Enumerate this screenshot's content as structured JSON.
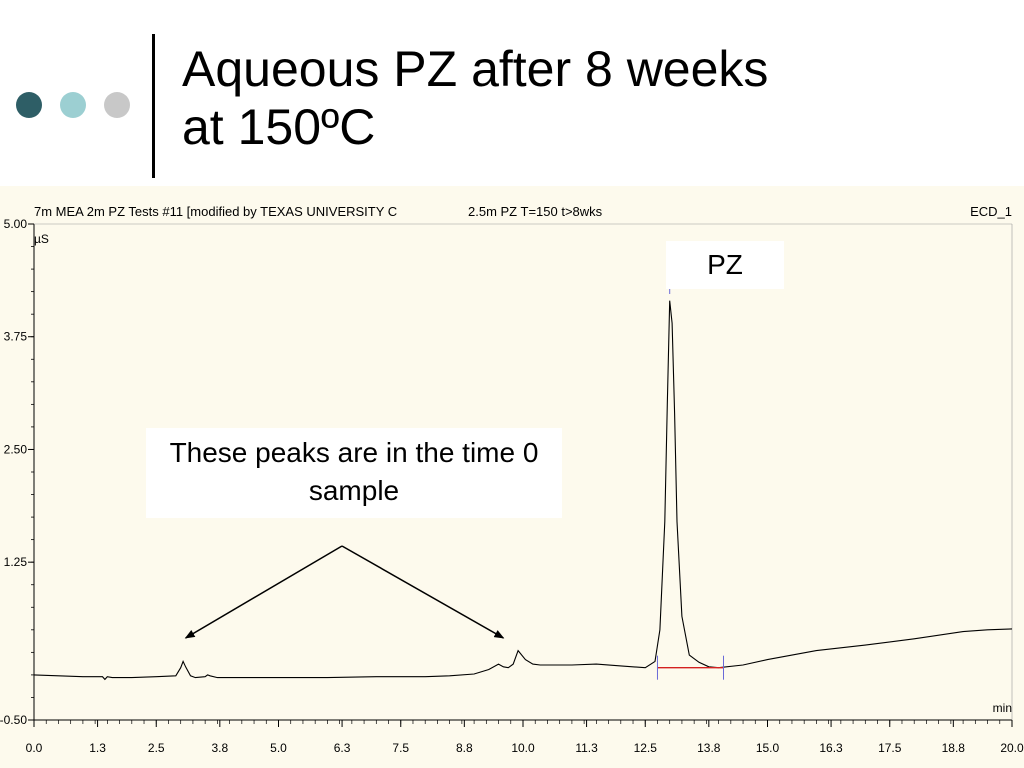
{
  "slide": {
    "title_line1": "Aqueous PZ after 8 weeks",
    "title_line2": "at 150ºC",
    "bullet_colors": [
      "#2e5e66",
      "#9ccfd2",
      "#c8c8c8"
    ]
  },
  "chart_header": {
    "left": "7m MEA 2m PZ Tests #11 [modified by  TEXAS UNIVERSITY C",
    "center": "2.5m PZ T=150 t>8wks",
    "right": "ECD_1"
  },
  "callouts": {
    "pz": "PZ",
    "note": "These peaks are in the time 0 sample"
  },
  "chart_data": {
    "type": "line",
    "xlabel": "min",
    "ylabel": "µS",
    "xlim": [
      0.0,
      20.0
    ],
    "ylim": [
      -0.5,
      5.0
    ],
    "x_ticks": [
      "0.0",
      "1.3",
      "2.5",
      "3.8",
      "5.0",
      "6.3",
      "7.5",
      "8.8",
      "10.0",
      "11.3",
      "12.5",
      "13.8",
      "15.0",
      "16.3",
      "17.5",
      "18.8",
      "20.0"
    ],
    "y_ticks": [
      "5.00",
      "3.75",
      "2.50",
      "1.25",
      "-0.50"
    ],
    "grid": false,
    "colors": {
      "trace": "#000000",
      "baseline": "#d42020",
      "marker": "#6a6ad8"
    },
    "series": [
      {
        "x": [
          0.0,
          0.5,
          1.0,
          1.4,
          1.45,
          1.5,
          1.6,
          2.0,
          2.5,
          2.9,
          3.0,
          3.05,
          3.1,
          3.2,
          3.3,
          3.5,
          3.55,
          3.6,
          3.75,
          4.0,
          5.0,
          6.0,
          7.0,
          8.0,
          8.5,
          9.0,
          9.3,
          9.5,
          9.6,
          9.7,
          9.8,
          9.9,
          10.05,
          10.2,
          10.35,
          10.5,
          11.0,
          11.5,
          12.0,
          12.5,
          12.7,
          12.8,
          12.9,
          12.95,
          13.0,
          13.05,
          13.1,
          13.15,
          13.25,
          13.4,
          13.6,
          13.8,
          14.0,
          14.5,
          15.0,
          16.0,
          17.0,
          18.0,
          19.0,
          19.5,
          20.0
        ],
        "y": [
          0.0,
          -0.01,
          -0.02,
          -0.02,
          -0.05,
          -0.02,
          -0.03,
          -0.03,
          -0.02,
          -0.01,
          0.08,
          0.15,
          0.09,
          -0.01,
          -0.03,
          -0.02,
          0.0,
          -0.01,
          -0.03,
          -0.03,
          -0.03,
          -0.03,
          -0.02,
          -0.02,
          -0.01,
          0.01,
          0.06,
          0.12,
          0.09,
          0.08,
          0.12,
          0.27,
          0.17,
          0.12,
          0.11,
          0.11,
          0.11,
          0.12,
          0.1,
          0.08,
          0.15,
          0.5,
          1.7,
          3.0,
          4.15,
          3.9,
          2.9,
          1.7,
          0.65,
          0.22,
          0.14,
          0.09,
          0.08,
          0.11,
          0.17,
          0.27,
          0.33,
          0.4,
          0.48,
          0.5,
          0.51
        ]
      }
    ],
    "annotations": [
      {
        "text": "PZ",
        "x": 13.0
      },
      {
        "text": "These peaks are in the time 0 sample",
        "targets": [
          3.1,
          9.6
        ]
      }
    ],
    "integration_baseline": {
      "x": [
        12.75,
        14.1
      ],
      "y": [
        0.08,
        0.08
      ]
    }
  }
}
